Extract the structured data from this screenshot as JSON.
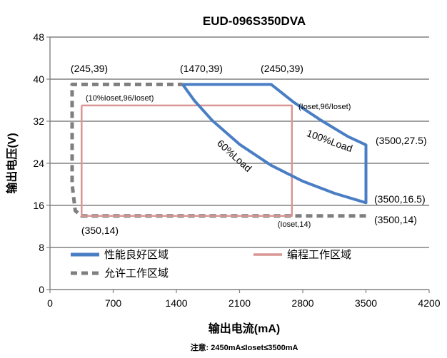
{
  "chart_data": {
    "type": "line",
    "title": "EUD-096S350DVA",
    "xlabel": "输出电流(mA)",
    "ylabel": "输出电压(V)",
    "xlim": [
      0,
      4200
    ],
    "ylim": [
      0,
      48
    ],
    "xticks": [
      "0",
      "700",
      "1400",
      "2100",
      "2800",
      "3500",
      "4200"
    ],
    "yticks": [
      "0",
      "8",
      "16",
      "24",
      "32",
      "40",
      "48"
    ],
    "grid": true,
    "legend_position": "bottom",
    "series": [
      {
        "name": "性能良好区域",
        "color": "#4a7ec4",
        "style": "solid",
        "points": [
          [
            1470,
            39
          ],
          [
            2450,
            39
          ],
          [
            2700,
            35.6
          ],
          [
            3000,
            32.2
          ],
          [
            3300,
            29.1
          ],
          [
            3500,
            27.5
          ],
          [
            3500,
            16.5
          ],
          [
            3150,
            18.3
          ],
          [
            2800,
            20.6
          ],
          [
            2450,
            23.6
          ],
          [
            2100,
            27.6
          ],
          [
            1800,
            32.1
          ],
          [
            1600,
            35.9
          ],
          [
            1470,
            39
          ]
        ]
      },
      {
        "name": "编程工作区域",
        "color": "#d99694",
        "style": "solid",
        "points": [
          [
            350,
            35
          ],
          [
            2680,
            35
          ],
          [
            2680,
            14
          ],
          [
            350,
            14
          ],
          [
            350,
            35
          ]
        ]
      },
      {
        "name": "允许工作区域",
        "color": "#7f7f7f",
        "style": "dashed",
        "points": [
          [
            3500,
            14
          ],
          [
            350,
            14
          ],
          [
            280,
            15
          ],
          [
            245,
            20
          ],
          [
            245,
            39
          ],
          [
            1470,
            39
          ]
        ]
      }
    ],
    "curve_labels": [
      {
        "text": "100%Load"
      },
      {
        "text": "60%Load"
      }
    ],
    "annotations": [
      "(245,39)",
      "(1470,39)",
      "(2450,39)",
      "(10%Ioset,96/Ioset)",
      "(Ioset,96/Ioset)",
      "(3500,27.5)",
      "(3500,16.5)",
      "(3500,14)",
      "(Ioset,14)",
      "(350,14)"
    ],
    "note": "注意: 2450mA≤Ioset≤3500mA"
  }
}
